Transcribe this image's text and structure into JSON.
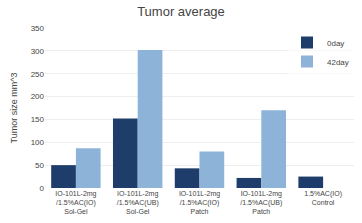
{
  "chart_data": {
    "type": "bar",
    "title": "Tumor average",
    "ylabel": "Tumor size mm^3",
    "categories": [
      "IO-101L-2mg\n/1.5%AC(IO)\nSol-Gel",
      "IO-101L-2mg\n/1.5%AC(UB)\nSol-Gel",
      "IO-101L-2mg\n/1.5%AC(IO)\nPatch",
      "IO-101L-2mg\n/1.5%AC(UB)\nPatch",
      "1.5%AC(IO)\nControl"
    ],
    "series": [
      {
        "name": "0day",
        "color": "#1F3D6B",
        "values": [
          50,
          152,
          43,
          22,
          25
        ]
      },
      {
        "name": "42day",
        "color": "#8DB4D8",
        "values": [
          87,
          302,
          80,
          170,
          0
        ]
      }
    ],
    "ylim": [
      0,
      350
    ],
    "yticks": [
      0,
      50,
      100,
      150,
      200,
      250,
      300,
      350
    ],
    "grid": true,
    "legend": "upper right"
  }
}
